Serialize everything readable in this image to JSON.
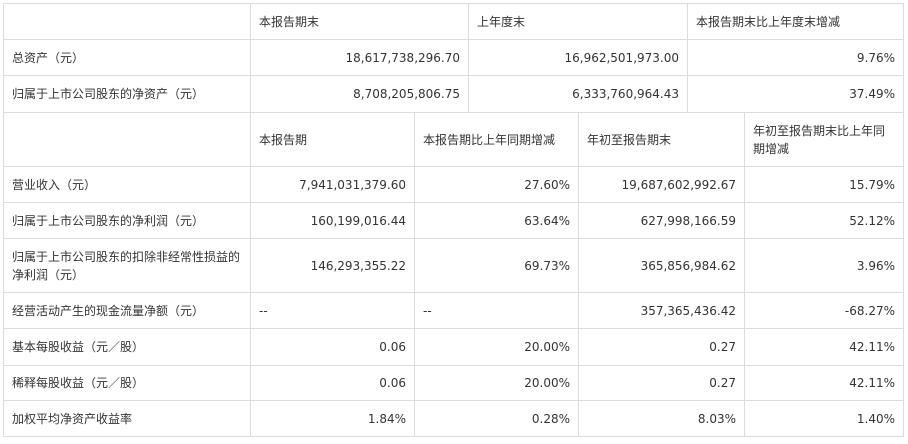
{
  "section1": {
    "headers": [
      "本报告期末",
      "上年度末",
      "本报告期末比上年度末增减"
    ],
    "rows": [
      {
        "label": "总资产（元）",
        "values": [
          "18,617,738,296.70",
          "16,962,501,973.00",
          "9.76%"
        ]
      },
      {
        "label": "归属于上市公司股东的净资产（元）",
        "values": [
          "8,708,205,806.75",
          "6,333,760,964.43",
          "37.49%"
        ]
      }
    ]
  },
  "section2": {
    "headers": [
      "本报告期",
      "本报告期比上年同期增减",
      "年初至报告期末",
      "年初至报告期末比上年同期增减"
    ],
    "rows": [
      {
        "label": "营业收入（元）",
        "values": [
          "7,941,031,379.60",
          "27.60%",
          "19,687,602,992.67",
          "15.79%"
        ]
      },
      {
        "label": "归属于上市公司股东的净利润（元）",
        "values": [
          "160,199,016.44",
          "63.64%",
          "627,998,166.59",
          "52.12%"
        ]
      },
      {
        "label": "归属于上市公司股东的扣除非经常性损益的净利润（元）",
        "values": [
          "146,293,355.22",
          "69.73%",
          "365,856,984.62",
          "3.96%"
        ]
      },
      {
        "label": "经营活动产生的现金流量净额（元）",
        "values": [
          "--",
          "--",
          "357,365,436.42",
          "-68.27%"
        ]
      },
      {
        "label": "基本每股收益（元／股）",
        "values": [
          "0.06",
          "20.00%",
          "0.27",
          "42.11%"
        ]
      },
      {
        "label": "稀释每股收益（元／股）",
        "values": [
          "0.06",
          "20.00%",
          "0.27",
          "42.11%"
        ]
      },
      {
        "label": "加权平均净资产收益率",
        "values": [
          "1.84%",
          "0.28%",
          "8.03%",
          "1.40%"
        ]
      }
    ]
  }
}
